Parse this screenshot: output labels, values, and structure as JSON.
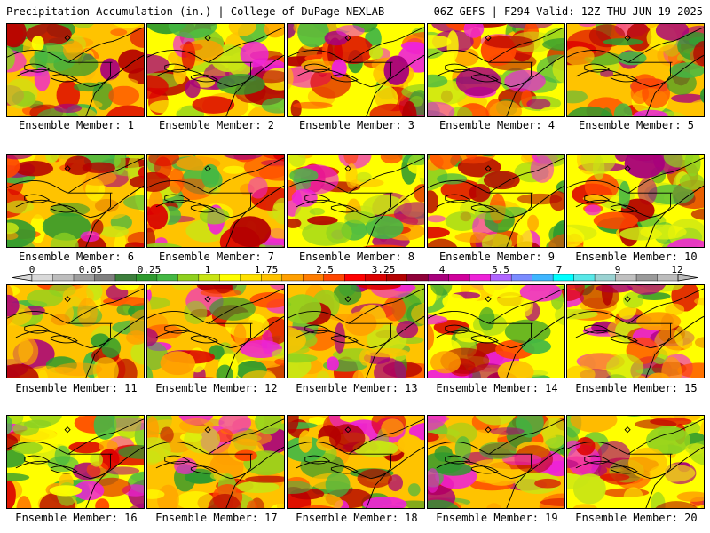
{
  "header": {
    "left": "Precipitation Accumulation (in.) | College of DuPage NEXLAB",
    "right": "06Z GEFS | F294 Valid: 12Z THU JUN 19 2025"
  },
  "colorbar": {
    "labels": [
      "0",
      "0.05",
      "0.25",
      "1",
      "1.75",
      "2.5",
      "3.25",
      "4",
      "5.5",
      "7",
      "9",
      "12"
    ],
    "colors": [
      "#d9d9d9",
      "#bdbdbd",
      "#9e9e9e",
      "#7f7f7f",
      "#3d7f3d",
      "#2e9a2e",
      "#44b844",
      "#8fd11f",
      "#c9e514",
      "#ffff00",
      "#ffe100",
      "#ffc300",
      "#ff9f00",
      "#ff7c00",
      "#ff4600",
      "#ff0000",
      "#dc0000",
      "#b40000",
      "#8f0038",
      "#a8007c",
      "#d0009c",
      "#ee22d8",
      "#b066ff",
      "#7a8cff",
      "#3fb6ff",
      "#00ffff",
      "#58e8e8",
      "#9ad2d2",
      "#c0c0c0",
      "#9a9a9a",
      "#bcbcbc"
    ]
  },
  "members": [
    {
      "label": "Ensemble Member: 1"
    },
    {
      "label": "Ensemble Member: 2"
    },
    {
      "label": "Ensemble Member: 3"
    },
    {
      "label": "Ensemble Member: 4"
    },
    {
      "label": "Ensemble Member: 5"
    },
    {
      "label": "Ensemble Member: 6"
    },
    {
      "label": "Ensemble Member: 7"
    },
    {
      "label": "Ensemble Member: 8"
    },
    {
      "label": "Ensemble Member: 9"
    },
    {
      "label": "Ensemble Member: 10"
    },
    {
      "label": "Ensemble Member: 11"
    },
    {
      "label": "Ensemble Member: 12"
    },
    {
      "label": "Ensemble Member: 13"
    },
    {
      "label": "Ensemble Member: 14"
    },
    {
      "label": "Ensemble Member: 15"
    },
    {
      "label": "Ensemble Member: 16"
    },
    {
      "label": "Ensemble Member: 17"
    },
    {
      "label": "Ensemble Member: 18"
    },
    {
      "label": "Ensemble Member: 19"
    },
    {
      "label": "Ensemble Member: 20"
    }
  ]
}
